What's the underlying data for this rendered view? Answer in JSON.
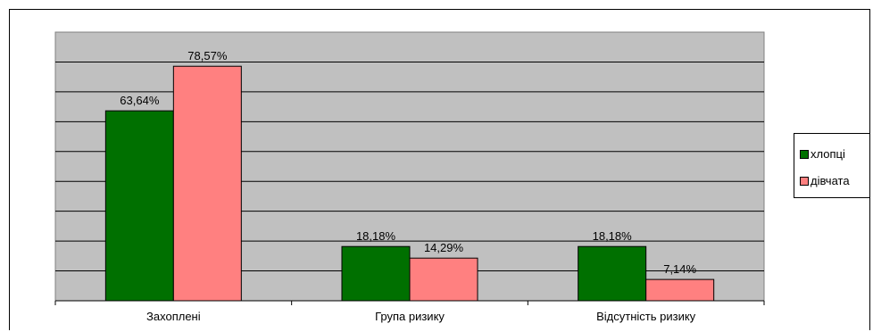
{
  "chart_data": {
    "type": "bar",
    "categories": [
      "Захоплені",
      "Група ризику",
      "Відсутність ризику"
    ],
    "series": [
      {
        "name": "хлопці",
        "values": [
          63.64,
          18.18,
          18.18
        ],
        "labels": [
          "63,64%",
          "18,18%",
          "18,18%"
        ],
        "color": "#007000"
      },
      {
        "name": "дівчата",
        "values": [
          78.57,
          14.29,
          7.14
        ],
        "labels": [
          "78,57%",
          "14,29%",
          "7,14%"
        ],
        "color": "#ff8080"
      }
    ],
    "title": "",
    "xlabel": "",
    "ylabel": "",
    "ylim": [
      0,
      90
    ],
    "grid": true,
    "plot_background": "#c0c0c0",
    "legend_position": "right"
  }
}
